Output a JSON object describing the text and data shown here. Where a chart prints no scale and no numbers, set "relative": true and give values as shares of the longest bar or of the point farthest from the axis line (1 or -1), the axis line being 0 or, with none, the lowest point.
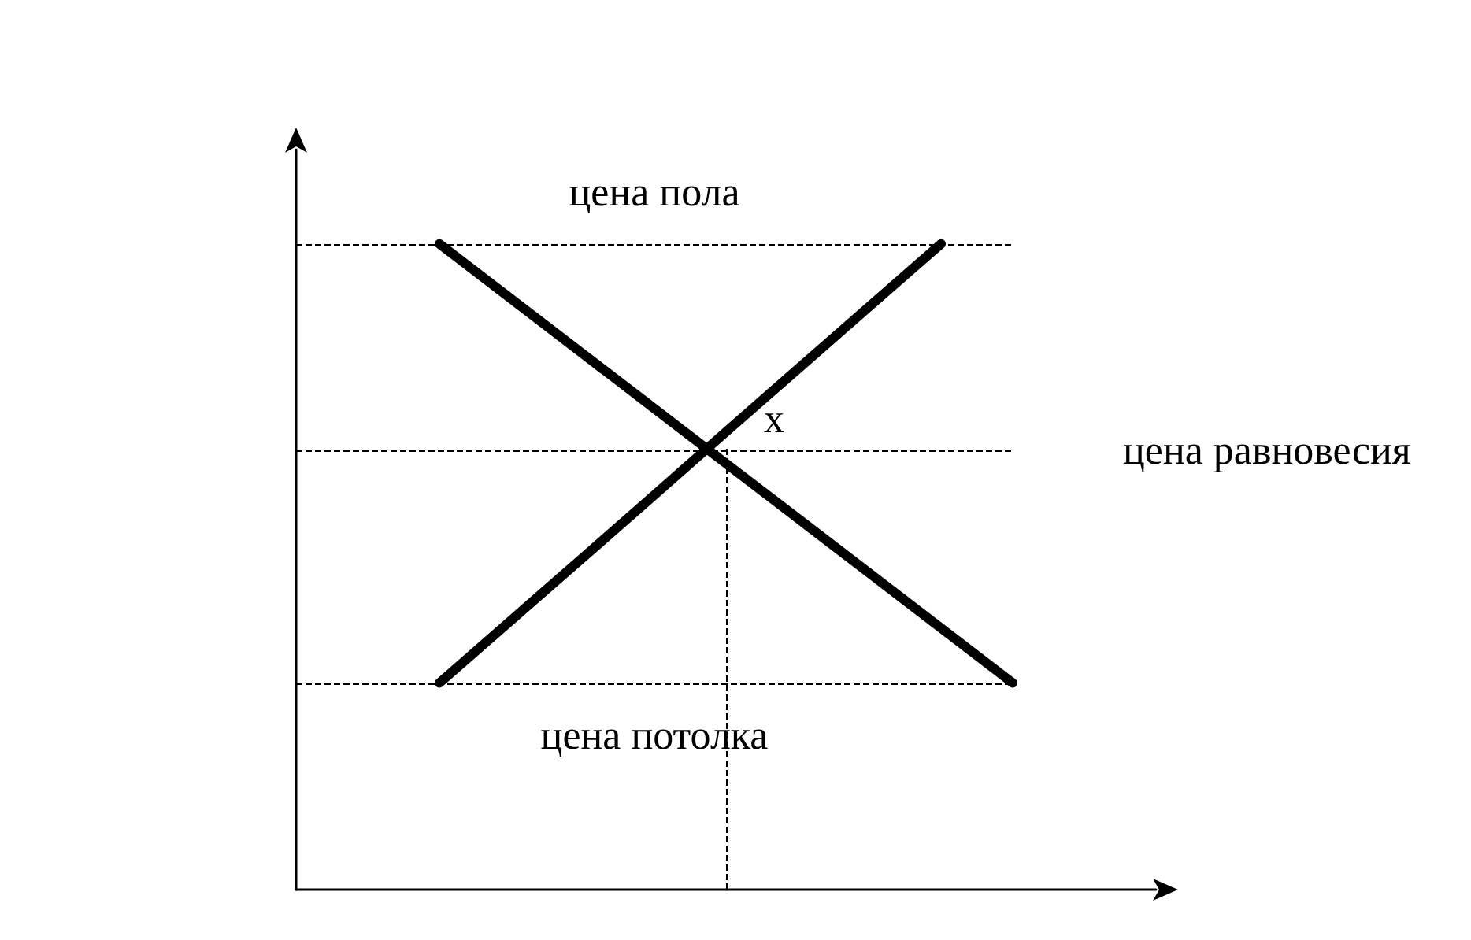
{
  "chart_data": {
    "type": "line",
    "relative": true,
    "marker": "none",
    "line_style": "solid",
    "categories": [
      null,
      null,
      null,
      null,
      null,
      null,
      null,
      null,
      null,
      null,
      null,
      null,
      null
    ],
    "series": [
      {
        "color": "#000000",
        "values": [
          null,
          null,
          1,
          0.915,
          0.83,
          0.745,
          0.66,
          0.575,
          0.49,
          0.405,
          0.32,
          null,
          null
        ]
      },
      {
        "color": "#000000",
        "values": [
          null,
          null,
          0.32,
          0.417,
          0.514,
          0.611,
          0.709,
          0.806,
          0.903,
          1,
          null,
          null,
          null
        ]
      }
    ],
    "ref_lines": [
      {
        "axis": "y",
        "value": 1,
        "label": "цена пола",
        "color": "#000000",
        "line_style": "dashed"
      },
      {
        "axis": "y",
        "value": 0.68,
        "label": "цена равновесия",
        "color": "#000000",
        "line_style": "dashed"
      },
      {
        "axis": "y",
        "value": 0.32,
        "label": "цена потолка",
        "color": "#000000",
        "line_style": "dashed"
      }
    ],
    "annotations": [
      {
        "text": "x",
        "y": 0.68
      }
    ]
  }
}
